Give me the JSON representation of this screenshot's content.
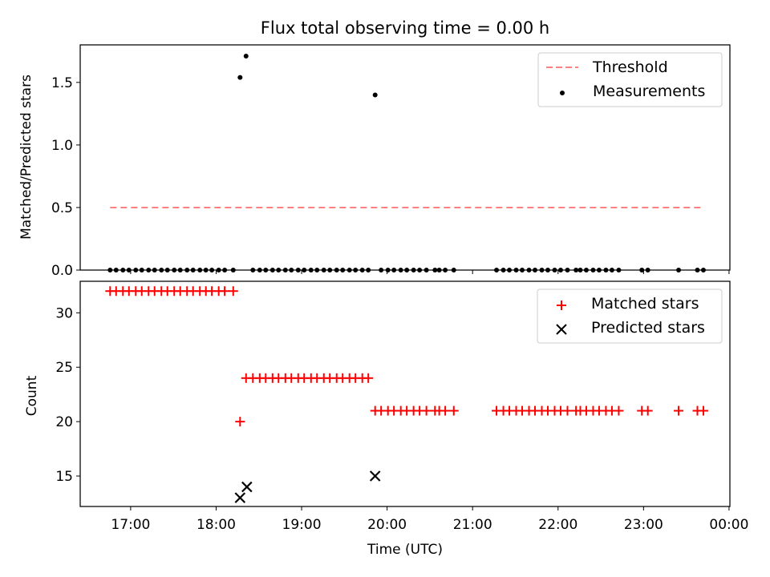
{
  "chart_data": [
    {
      "type": "scatter",
      "title": "Flux total observing time = 0.00 h",
      "xlabel": "",
      "ylabel": "Matched/Predicted stars",
      "xlim": [
        16.41,
        24.01
      ],
      "ylim": [
        0.0,
        1.8
      ],
      "yticks": [
        0.0,
        0.5,
        1.0,
        1.5
      ],
      "ytick_labels": [
        "0.0",
        "0.5",
        "1.0",
        "1.5"
      ],
      "xticks": [
        17,
        18,
        19,
        20,
        21,
        22,
        23,
        24
      ],
      "grid": false,
      "legend": {
        "position": "top-right",
        "entries": [
          "Threshold",
          "Measurements"
        ]
      },
      "series": [
        {
          "name": "Threshold",
          "style": "dashed-line",
          "color": "#ff8080",
          "x": [
            16.76,
            23.71
          ],
          "y": [
            0.5,
            0.5
          ]
        },
        {
          "name": "Measurements",
          "style": "dot",
          "color": "#000000",
          "x": [
            16.76,
            16.83,
            16.91,
            16.98,
            17.06,
            17.13,
            17.21,
            17.28,
            17.36,
            17.43,
            17.51,
            17.58,
            17.66,
            17.73,
            17.81,
            17.88,
            17.95,
            18.03,
            18.1,
            18.2,
            18.28,
            18.35,
            18.43,
            18.51,
            18.58,
            18.66,
            18.73,
            18.81,
            18.88,
            18.96,
            19.03,
            19.11,
            19.18,
            19.26,
            19.33,
            19.41,
            19.48,
            19.56,
            19.63,
            19.71,
            19.78,
            19.86,
            19.93,
            20.01,
            20.08,
            20.16,
            20.23,
            20.31,
            20.38,
            20.46,
            20.56,
            20.61,
            20.68,
            20.78,
            21.28,
            21.36,
            21.43,
            21.51,
            21.58,
            21.66,
            21.73,
            21.81,
            21.88,
            21.96,
            22.03,
            22.11,
            22.21,
            22.26,
            22.33,
            22.41,
            22.48,
            22.56,
            22.63,
            22.71,
            22.98,
            23.05,
            23.41,
            23.63,
            23.7
          ],
          "y": [
            0,
            0,
            0,
            0,
            0,
            0,
            0,
            0,
            0,
            0,
            0,
            0,
            0,
            0,
            0,
            0,
            0,
            0,
            0,
            0,
            1.54,
            1.71,
            0,
            0,
            0,
            0,
            0,
            0,
            0,
            0,
            0,
            0,
            0,
            0,
            0,
            0,
            0,
            0,
            0,
            0,
            0,
            1.4,
            0,
            0,
            0,
            0,
            0,
            0,
            0,
            0,
            0,
            0,
            0,
            0,
            0,
            0,
            0,
            0,
            0,
            0,
            0,
            0,
            0,
            0,
            0,
            0,
            0,
            0,
            0,
            0,
            0,
            0,
            0,
            0,
            0,
            0,
            0,
            0,
            0
          ]
        }
      ]
    },
    {
      "type": "scatter",
      "title": "",
      "xlabel": "Time (UTC)",
      "ylabel": "Count",
      "xlim": [
        16.41,
        24.01
      ],
      "ylim": [
        12.2,
        32.9
      ],
      "yticks": [
        15,
        20,
        25,
        30
      ],
      "ytick_labels": [
        "15",
        "20",
        "25",
        "30"
      ],
      "xticks": [
        17,
        18,
        19,
        20,
        21,
        22,
        23,
        24
      ],
      "xtick_labels": [
        "17:00",
        "18:00",
        "19:00",
        "20:00",
        "21:00",
        "22:00",
        "23:00",
        "00:00"
      ],
      "grid": false,
      "legend": {
        "position": "top-right",
        "entries": [
          "Matched stars",
          "Predicted stars"
        ]
      },
      "series": [
        {
          "name": "Matched stars",
          "marker": "+",
          "color": "#ff0000",
          "x": [
            16.76,
            16.83,
            16.91,
            16.98,
            17.06,
            17.13,
            17.21,
            17.28,
            17.36,
            17.43,
            17.51,
            17.58,
            17.66,
            17.73,
            17.81,
            17.88,
            17.95,
            18.03,
            18.1,
            18.2,
            18.28,
            18.35,
            18.43,
            18.51,
            18.58,
            18.66,
            18.73,
            18.81,
            18.88,
            18.96,
            19.03,
            19.11,
            19.18,
            19.26,
            19.33,
            19.41,
            19.48,
            19.56,
            19.63,
            19.71,
            19.78,
            19.86,
            19.93,
            20.01,
            20.08,
            20.16,
            20.23,
            20.31,
            20.38,
            20.46,
            20.56,
            20.61,
            20.68,
            20.78,
            21.28,
            21.36,
            21.43,
            21.51,
            21.58,
            21.66,
            21.73,
            21.81,
            21.88,
            21.96,
            22.03,
            22.11,
            22.21,
            22.26,
            22.33,
            22.41,
            22.48,
            22.56,
            22.63,
            22.71,
            22.98,
            23.05,
            23.41,
            23.63,
            23.7
          ],
          "y": [
            32,
            32,
            32,
            32,
            32,
            32,
            32,
            32,
            32,
            32,
            32,
            32,
            32,
            32,
            32,
            32,
            32,
            32,
            32,
            32,
            20,
            24,
            24,
            24,
            24,
            24,
            24,
            24,
            24,
            24,
            24,
            24,
            24,
            24,
            24,
            24,
            24,
            24,
            24,
            24,
            24,
            21,
            21,
            21,
            21,
            21,
            21,
            21,
            21,
            21,
            21,
            21,
            21,
            21,
            21,
            21,
            21,
            21,
            21,
            21,
            21,
            21,
            21,
            21,
            21,
            21,
            21,
            21,
            21,
            21,
            21,
            21,
            21,
            21,
            21,
            21,
            21,
            21,
            21
          ]
        },
        {
          "name": "Predicted stars",
          "marker": "x",
          "color": "#000000",
          "x": [
            18.28,
            18.36,
            19.86
          ],
          "y": [
            13,
            14,
            15
          ]
        }
      ]
    }
  ]
}
